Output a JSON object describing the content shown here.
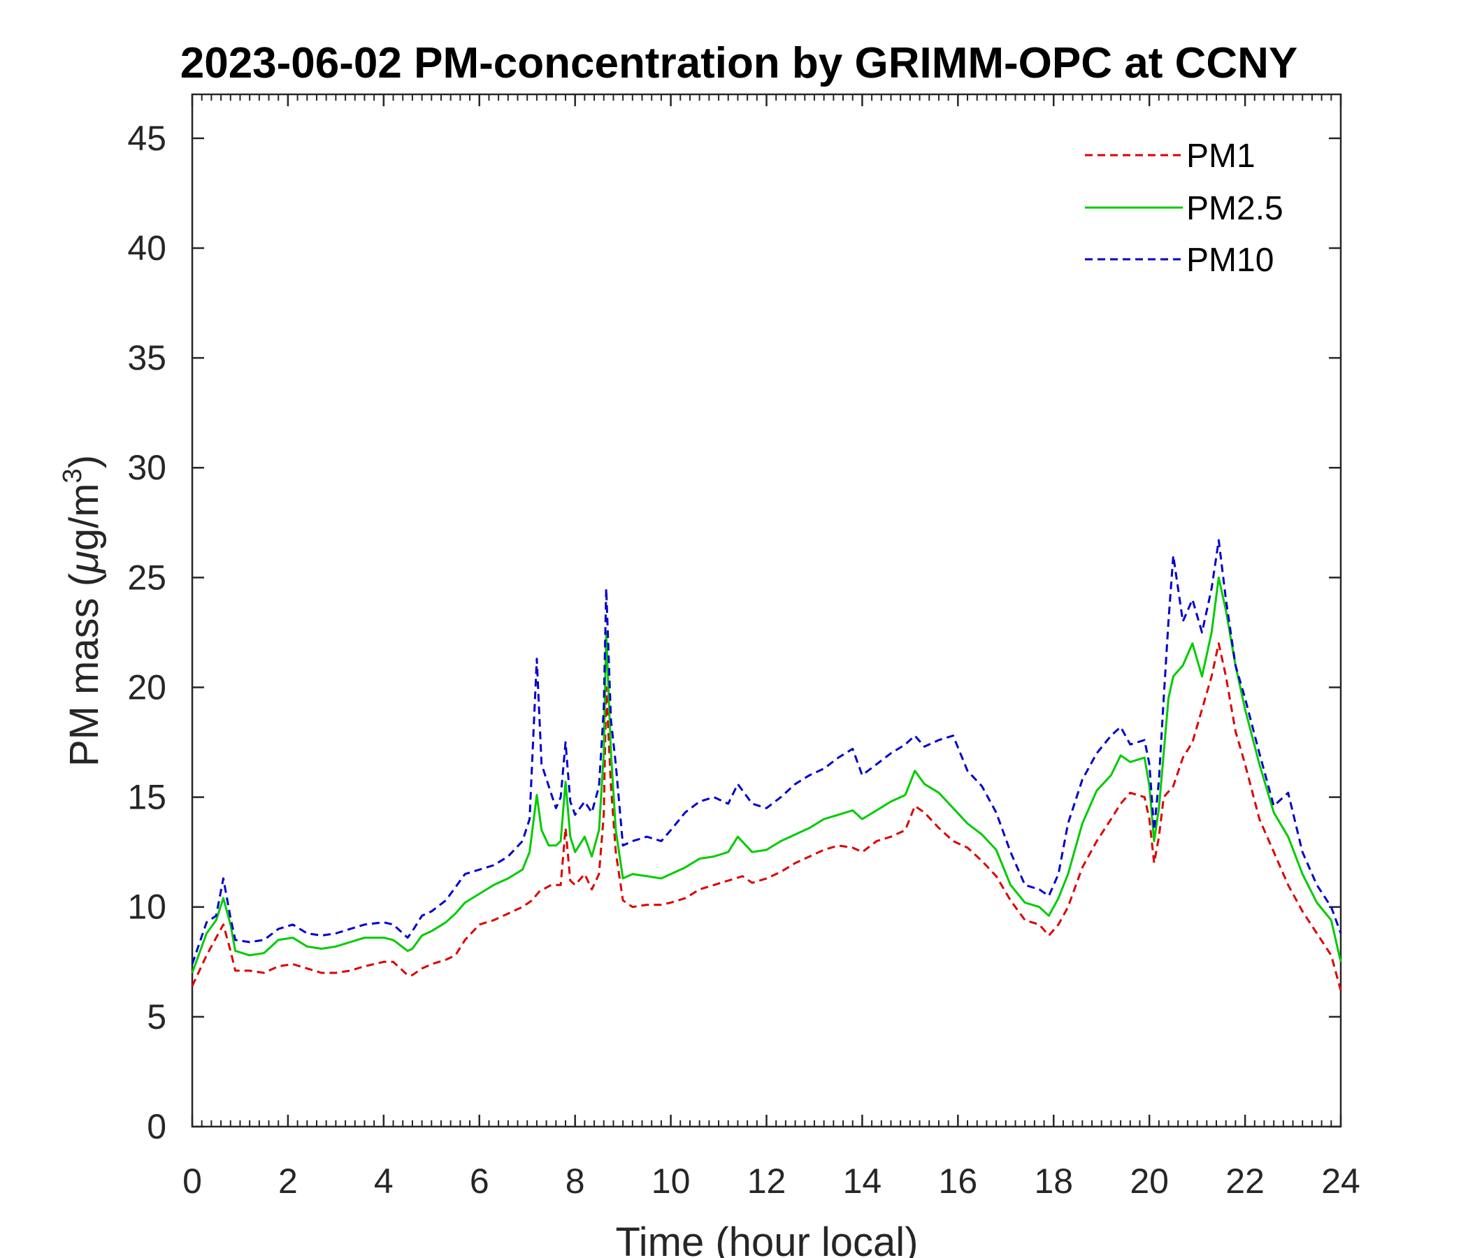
{
  "chart_data": {
    "type": "line",
    "title": "2023-06-02 PM-concentration by GRIMM-OPC at CCNY",
    "xlabel": "Time (hour local)",
    "ylabel": {
      "prefix": "PM mass (",
      "mu": "μ",
      "unit": "g/m",
      "sup": "3",
      "suffix": ")"
    },
    "xlim": [
      0,
      24
    ],
    "ylim": [
      0,
      47
    ],
    "xticks": [
      0,
      2,
      4,
      6,
      8,
      10,
      12,
      14,
      16,
      18,
      20,
      22,
      24
    ],
    "yticks": [
      0,
      5,
      10,
      15,
      20,
      25,
      30,
      35,
      40,
      45
    ],
    "legend_position": "top-right",
    "series": [
      {
        "name": "PM1",
        "color": "#dd0000",
        "dash": true,
        "x": [
          0,
          0.3,
          0.5,
          0.65,
          0.8,
          0.9,
          1.2,
          1.5,
          1.8,
          2.1,
          2.4,
          2.7,
          3.0,
          3.3,
          3.6,
          4.0,
          4.2,
          4.5,
          4.6,
          4.8,
          5.0,
          5.3,
          5.5,
          5.7,
          6.0,
          6.3,
          6.6,
          6.9,
          7.1,
          7.25,
          7.5,
          7.7,
          7.8,
          7.9,
          8.0,
          8.2,
          8.35,
          8.5,
          8.6,
          8.65,
          8.75,
          8.85,
          9.0,
          9.2,
          9.5,
          9.8,
          10.0,
          10.3,
          10.6,
          10.9,
          11.2,
          11.5,
          11.7,
          12.0,
          12.3,
          12.6,
          12.9,
          13.2,
          13.5,
          13.8,
          14.0,
          14.3,
          14.6,
          14.9,
          15.1,
          15.3,
          15.6,
          15.9,
          16.2,
          16.5,
          16.8,
          17.1,
          17.4,
          17.7,
          17.9,
          18.1,
          18.3,
          18.6,
          18.9,
          19.2,
          19.4,
          19.6,
          19.9,
          20.0,
          20.1,
          20.2,
          20.3,
          20.5,
          20.7,
          20.9,
          21.1,
          21.3,
          21.45,
          21.6,
          21.8,
          22.0,
          22.3,
          22.6,
          22.9,
          23.2,
          23.5,
          23.8,
          24.0
        ],
        "y": [
          6.4,
          7.8,
          8.6,
          9.2,
          8.0,
          7.1,
          7.1,
          7.0,
          7.3,
          7.4,
          7.2,
          7.0,
          7.0,
          7.1,
          7.3,
          7.5,
          7.5,
          6.9,
          6.9,
          7.2,
          7.4,
          7.6,
          7.8,
          8.5,
          9.2,
          9.4,
          9.7,
          10.0,
          10.3,
          10.7,
          11.0,
          11.0,
          13.6,
          11.2,
          11.0,
          11.5,
          10.8,
          11.5,
          14.2,
          20.0,
          15.5,
          12.5,
          10.3,
          10.0,
          10.1,
          10.1,
          10.2,
          10.4,
          10.8,
          11.0,
          11.2,
          11.4,
          11.1,
          11.3,
          11.6,
          12.0,
          12.3,
          12.6,
          12.8,
          12.7,
          12.5,
          13.0,
          13.2,
          13.5,
          14.6,
          14.3,
          13.6,
          13.0,
          12.7,
          12.1,
          11.4,
          10.3,
          9.4,
          9.2,
          8.7,
          9.2,
          10.0,
          11.8,
          13.0,
          14.0,
          14.7,
          15.2,
          15.0,
          14.0,
          12.0,
          13.2,
          15.0,
          15.5,
          16.8,
          17.5,
          19.0,
          20.5,
          22.0,
          20.5,
          18.0,
          16.5,
          14.0,
          12.5,
          11.0,
          9.8,
          8.8,
          7.8,
          6.2
        ]
      },
      {
        "name": "PM2.5",
        "color": "#00cc00",
        "dash": false,
        "x": [
          0,
          0.3,
          0.5,
          0.65,
          0.8,
          0.9,
          1.2,
          1.5,
          1.8,
          2.1,
          2.4,
          2.7,
          3.0,
          3.3,
          3.6,
          4.0,
          4.2,
          4.5,
          4.6,
          4.8,
          5.0,
          5.3,
          5.5,
          5.7,
          6.0,
          6.3,
          6.6,
          6.9,
          7.05,
          7.2,
          7.3,
          7.45,
          7.6,
          7.7,
          7.8,
          7.9,
          8.0,
          8.2,
          8.35,
          8.5,
          8.6,
          8.65,
          8.75,
          8.85,
          9.0,
          9.2,
          9.5,
          9.8,
          10.0,
          10.3,
          10.6,
          10.9,
          11.2,
          11.4,
          11.7,
          12.0,
          12.3,
          12.6,
          12.9,
          13.2,
          13.5,
          13.8,
          14.0,
          14.3,
          14.6,
          14.9,
          15.1,
          15.3,
          15.6,
          15.9,
          16.2,
          16.5,
          16.8,
          17.1,
          17.4,
          17.7,
          17.9,
          18.1,
          18.3,
          18.6,
          18.9,
          19.2,
          19.4,
          19.6,
          19.9,
          20.0,
          20.1,
          20.2,
          20.3,
          20.4,
          20.5,
          20.7,
          20.9,
          21.1,
          21.3,
          21.45,
          21.6,
          21.8,
          22.0,
          22.3,
          22.6,
          22.9,
          23.2,
          23.5,
          23.8,
          24.0
        ],
        "y": [
          7.0,
          8.8,
          9.4,
          10.4,
          9.2,
          8.0,
          7.8,
          7.9,
          8.5,
          8.6,
          8.2,
          8.1,
          8.2,
          8.4,
          8.6,
          8.6,
          8.5,
          8.0,
          8.1,
          8.7,
          8.9,
          9.3,
          9.7,
          10.2,
          10.6,
          11.0,
          11.3,
          11.7,
          12.5,
          15.1,
          13.5,
          12.8,
          12.8,
          13.0,
          15.7,
          13.2,
          12.5,
          13.2,
          12.3,
          13.5,
          17.0,
          22.5,
          17.0,
          13.5,
          11.3,
          11.5,
          11.4,
          11.3,
          11.5,
          11.8,
          12.2,
          12.3,
          12.5,
          13.2,
          12.5,
          12.6,
          13.0,
          13.3,
          13.6,
          14.0,
          14.2,
          14.4,
          14.0,
          14.4,
          14.8,
          15.1,
          16.2,
          15.6,
          15.2,
          14.5,
          13.8,
          13.3,
          12.6,
          11.0,
          10.2,
          10.0,
          9.6,
          10.4,
          11.5,
          13.8,
          15.3,
          16.0,
          16.9,
          16.6,
          16.8,
          15.5,
          13.0,
          14.5,
          17.0,
          19.5,
          20.5,
          21.0,
          22.0,
          20.5,
          22.5,
          25.0,
          23.5,
          21.0,
          19.0,
          16.5,
          14.3,
          13.2,
          11.5,
          10.2,
          9.4,
          7.5
        ]
      },
      {
        "name": "PM10",
        "color": "#0000cc",
        "dash": true,
        "x": [
          0,
          0.3,
          0.5,
          0.65,
          0.8,
          0.9,
          1.2,
          1.5,
          1.8,
          2.1,
          2.4,
          2.7,
          3.0,
          3.3,
          3.6,
          4.0,
          4.2,
          4.5,
          4.6,
          4.8,
          5.0,
          5.3,
          5.5,
          5.7,
          6.0,
          6.3,
          6.6,
          6.9,
          7.05,
          7.2,
          7.3,
          7.45,
          7.6,
          7.7,
          7.8,
          7.9,
          8.0,
          8.2,
          8.35,
          8.5,
          8.6,
          8.65,
          8.75,
          8.85,
          9.0,
          9.2,
          9.5,
          9.8,
          10.0,
          10.3,
          10.6,
          10.9,
          11.2,
          11.4,
          11.7,
          12.0,
          12.3,
          12.6,
          12.9,
          13.2,
          13.5,
          13.8,
          14.0,
          14.3,
          14.6,
          14.9,
          15.1,
          15.3,
          15.6,
          15.9,
          16.2,
          16.5,
          16.8,
          17.1,
          17.4,
          17.7,
          17.9,
          18.1,
          18.3,
          18.6,
          18.9,
          19.2,
          19.4,
          19.6,
          19.9,
          20.0,
          20.1,
          20.2,
          20.3,
          20.4,
          20.5,
          20.7,
          20.9,
          21.1,
          21.3,
          21.45,
          21.6,
          21.8,
          22.0,
          22.3,
          22.6,
          22.9,
          23.2,
          23.5,
          23.8,
          24.0
        ],
        "y": [
          7.4,
          9.3,
          9.6,
          11.3,
          9.5,
          8.5,
          8.4,
          8.5,
          9.0,
          9.2,
          8.8,
          8.7,
          8.8,
          9.0,
          9.2,
          9.3,
          9.2,
          8.6,
          8.9,
          9.6,
          9.8,
          10.3,
          10.9,
          11.5,
          11.7,
          11.9,
          12.3,
          13.0,
          14.0,
          21.3,
          16.5,
          15.5,
          14.5,
          15.0,
          17.5,
          14.8,
          14.2,
          14.8,
          14.3,
          15.5,
          19.0,
          24.5,
          18.5,
          16.5,
          12.8,
          13.0,
          13.2,
          13.0,
          13.5,
          14.3,
          14.8,
          15.0,
          14.7,
          15.6,
          14.7,
          14.5,
          15.0,
          15.6,
          16.0,
          16.3,
          16.8,
          17.2,
          16.0,
          16.5,
          17.0,
          17.4,
          17.8,
          17.3,
          17.6,
          17.8,
          16.2,
          15.5,
          14.3,
          12.5,
          11.0,
          10.8,
          10.5,
          11.5,
          13.8,
          15.8,
          17.0,
          17.8,
          18.2,
          17.4,
          17.6,
          16.5,
          13.5,
          15.8,
          19.5,
          23.0,
          26.0,
          23.0,
          24.0,
          22.5,
          24.5,
          26.7,
          24.0,
          21.0,
          19.5,
          17.0,
          14.6,
          15.2,
          12.5,
          11.0,
          10.0,
          8.8
        ]
      }
    ]
  }
}
